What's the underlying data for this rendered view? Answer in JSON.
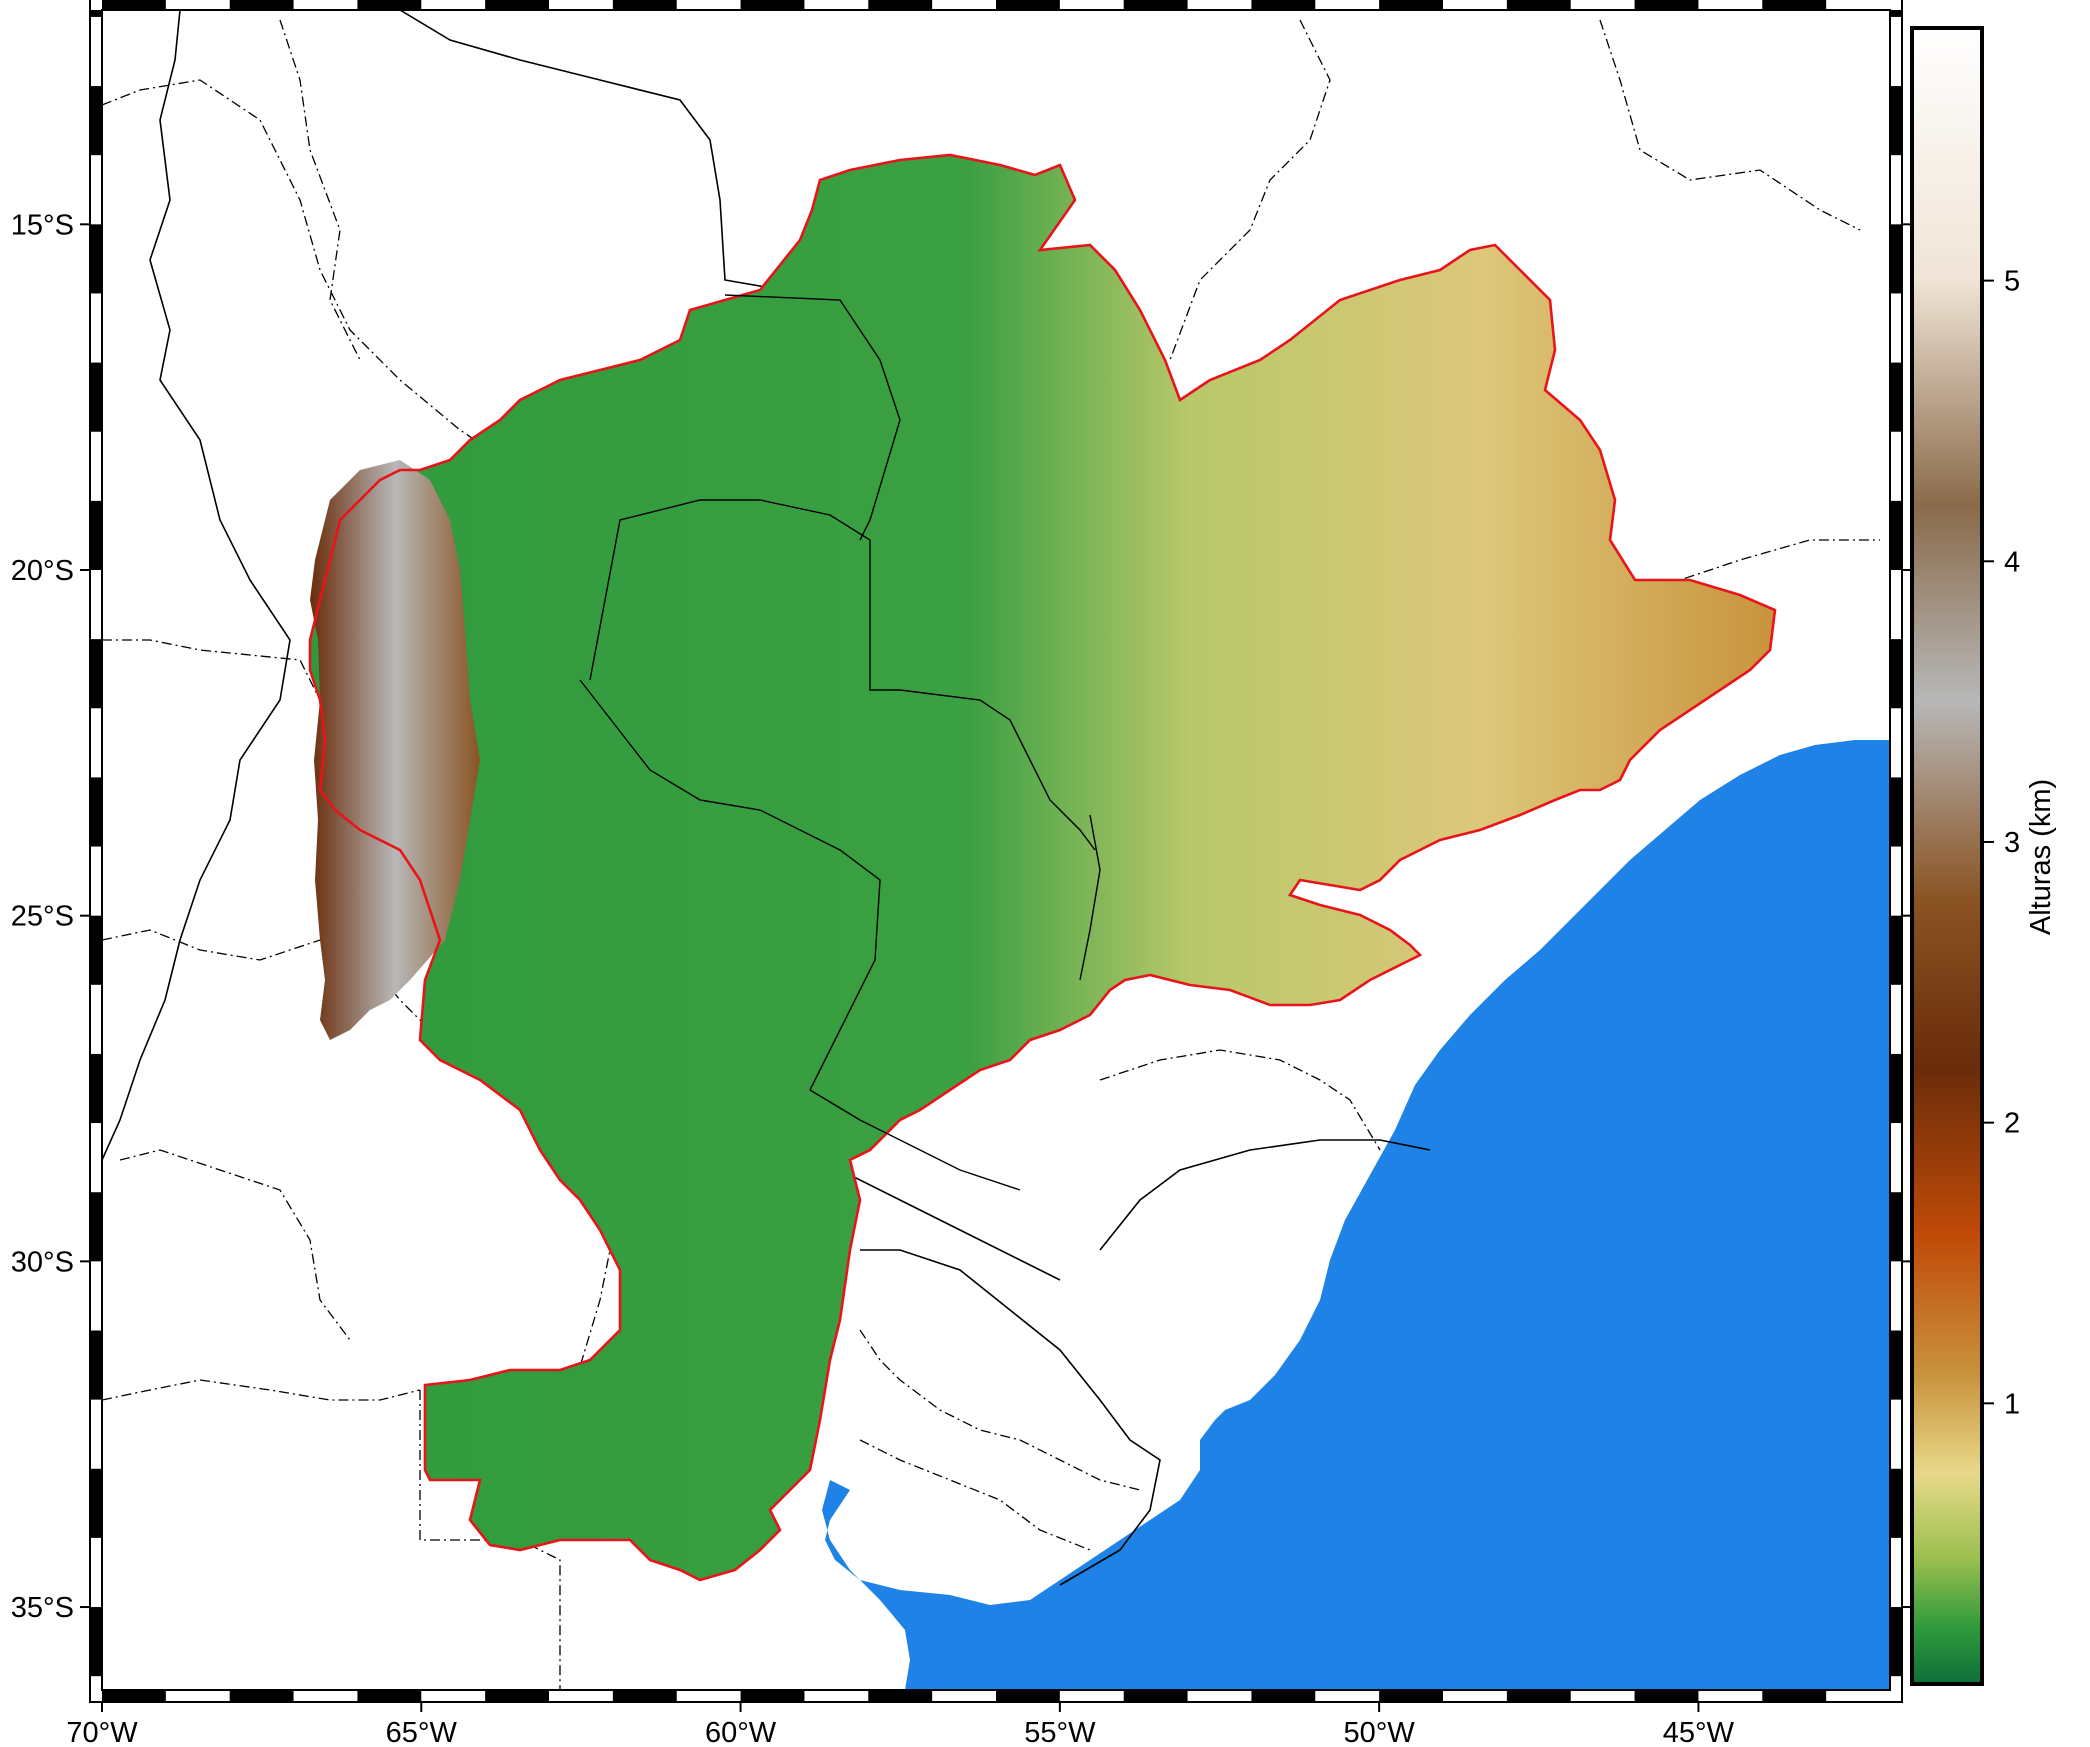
{
  "map": {
    "lon_range": [
      -70,
      -42
    ],
    "lat_range": [
      -36.2,
      -11.9
    ],
    "lon_ticks": [
      {
        "value": -70,
        "label": "70°W"
      },
      {
        "value": -65,
        "label": "65°W"
      },
      {
        "value": -60,
        "label": "60°W"
      },
      {
        "value": -55,
        "label": "55°W"
      },
      {
        "value": -50,
        "label": "50°W"
      },
      {
        "value": -45,
        "label": "45°W"
      }
    ],
    "lat_ticks": [
      {
        "value": -15,
        "label": "15°S"
      },
      {
        "value": -20,
        "label": "20°S"
      },
      {
        "value": -25,
        "label": "25°S"
      },
      {
        "value": -30,
        "label": "30°S"
      },
      {
        "value": -35,
        "label": "35°S"
      }
    ],
    "basin_outline_color": "#e8141a",
    "ocean_color": "#1e82e6",
    "land_color": "#ffffff"
  },
  "colorbar": {
    "title": "Alturas (km)",
    "range": [
      0,
      5.9
    ],
    "ticks": [
      {
        "value": 1,
        "label": "1"
      },
      {
        "value": 2,
        "label": "2"
      },
      {
        "value": 3,
        "label": "3"
      },
      {
        "value": 4,
        "label": "4"
      },
      {
        "value": 5,
        "label": "5"
      }
    ],
    "stops": [
      {
        "value": 0.0,
        "color": "#0f6e3a"
      },
      {
        "value": 0.2,
        "color": "#2f9a3c"
      },
      {
        "value": 0.45,
        "color": "#9cc04f"
      },
      {
        "value": 0.75,
        "color": "#e8d98a"
      },
      {
        "value": 1.1,
        "color": "#c9933d"
      },
      {
        "value": 1.6,
        "color": "#c04a08"
      },
      {
        "value": 2.2,
        "color": "#6a2c0a"
      },
      {
        "value": 2.8,
        "color": "#8a5424"
      },
      {
        "value": 3.5,
        "color": "#b8b8b8"
      },
      {
        "value": 4.2,
        "color": "#8a6a4a"
      },
      {
        "value": 5.0,
        "color": "#f0e4d6"
      },
      {
        "value": 5.9,
        "color": "#ffffff"
      }
    ]
  }
}
